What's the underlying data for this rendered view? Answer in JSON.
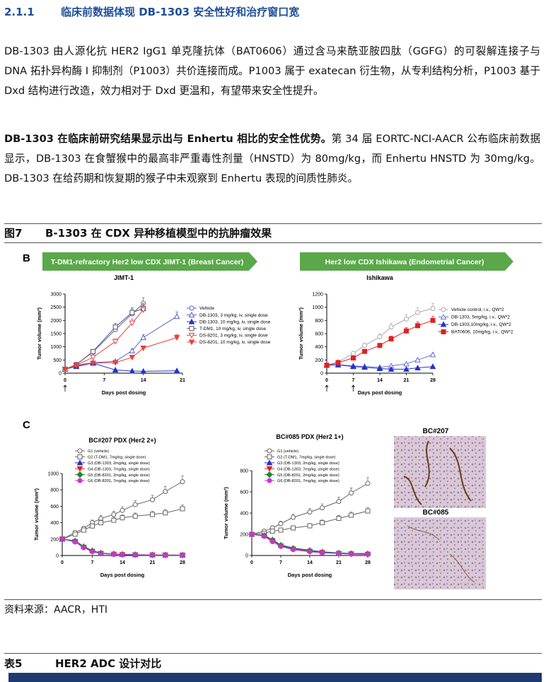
{
  "section": {
    "number": "2.1.1",
    "title": "临床前数据体现 DB-1303 安全性好和治疗窗口宽"
  },
  "para1": "DB-1303 由人源化抗 HER2 IgG1 单克隆抗体（BAT0606）通过含马来酰亚胺四肽（GGFG）的可裂解连接子与 DNA 拓扑异构酶 I 抑制剂（P1003）共价连接而成。P1003 属于 exatecan 衍生物，从专利结构分析，P1003 基于 Dxd 结构进行改造，效力相对于 Dxd 更温和，有望带来安全性提升。",
  "para2_bold": "DB-1303 在临床前研究结果显示出与 Enhertu 相比的安全性优势。",
  "para2_rest": "第 34 届 EORTC-NCI-AACR 公布临床前数据显示，DB-1303 在食蟹猴中的最高非严重毒性剂量（HNSTD）为 80mg/kg，而 Enhertu HNSTD 为 30mg/kg。DB-1303 在给药期和恢复期的猴子中未观察到 Enhertu 表现的间质性肺炎。",
  "figure": {
    "number": "图7",
    "title": "B-1303 在 CDX 异种移植模型中的抗肿瘤效果",
    "panel_b_label": "B",
    "panel_c_label": "C",
    "banner_left": "T-DM1-refractory Her2 low CDX JIMT-1 (Breast Cancer)",
    "banner_right": "Her2 low CDX Ishikawa (Endometrial Cancer)",
    "banner_color": "#5aa84a",
    "ihc1_label": "BC#207",
    "ihc2_label": "BC#085"
  },
  "source": "资料来源：AACR，HTI",
  "table": {
    "number": "表5",
    "title": "HER2 ADC 设计对比"
  },
  "chart_data": [
    {
      "type": "line",
      "title": "JIMT-1",
      "xlabel": "Days post dosing",
      "ylabel": "Tumor volume (mm³)",
      "xlim": [
        0,
        21
      ],
      "ylim": [
        0,
        3000
      ],
      "xticks": [
        0,
        7,
        14,
        21
      ],
      "yticks": [
        0,
        500,
        1000,
        1500,
        2000,
        2500,
        3000
      ],
      "dosing_days": [
        0
      ],
      "x": [
        0,
        2,
        5,
        9,
        12,
        14,
        16,
        20
      ],
      "series": [
        {
          "name": "Vehicle",
          "color": "#5560c8",
          "marker": "circle-open",
          "values": [
            150,
            330,
            800,
            1650,
            2250,
            2650,
            null,
            null
          ]
        },
        {
          "name": "DB-1303, 3  mg/kg, iv, single dose",
          "color": "#5560c8",
          "marker": "triangle-open",
          "values": [
            150,
            300,
            400,
            450,
            850,
            1350,
            null,
            2150
          ]
        },
        {
          "name": "DB-1303, 10 mg/kg, iv, single dose",
          "color": "#2233cc",
          "marker": "triangle",
          "values": [
            150,
            250,
            380,
            120,
            80,
            70,
            null,
            90
          ]
        },
        {
          "name": "T-DM1, 10 mg/kg, iv, single dose",
          "color": "#555555",
          "marker": "square-open",
          "values": [
            150,
            320,
            820,
            1750,
            2300,
            2450,
            null,
            null
          ]
        },
        {
          "name": "DS-8201, 3 mg/kg, iv, single dose",
          "color": "#e84040",
          "marker": "triangle-down-open",
          "values": [
            150,
            300,
            600,
            1200,
            1900,
            2400,
            null,
            null
          ]
        },
        {
          "name": "DS-8201, 10 mg/kg, iv, single dose",
          "color": "#e84040",
          "marker": "triangle-down",
          "values": [
            150,
            280,
            380,
            400,
            600,
            950,
            null,
            1350
          ]
        }
      ]
    },
    {
      "type": "line",
      "title": "Ishikawa",
      "xlabel": "Days post dosing",
      "ylabel": "Tumor volume (mm³)",
      "xlim": [
        0,
        28
      ],
      "ylim": [
        0,
        1200
      ],
      "xticks": [
        0,
        7,
        14,
        21,
        28
      ],
      "yticks": [
        0,
        200,
        400,
        600,
        800,
        1000,
        1200
      ],
      "dosing_days": [
        0,
        7
      ],
      "x": [
        0,
        3,
        7,
        10,
        14,
        17,
        21,
        24,
        28
      ],
      "series": [
        {
          "name": "Vehicle control, i.v., QW*2",
          "color": "#aaaaaa",
          "marker": "circle-open",
          "values": [
            120,
            170,
            300,
            420,
            550,
            700,
            820,
            920,
            980
          ]
        },
        {
          "name": "DB-1303, 5mg/kg, i.v., QW*2",
          "color": "#6a70d8",
          "marker": "triangle-open",
          "values": [
            120,
            130,
            110,
            100,
            90,
            110,
            140,
            200,
            280
          ]
        },
        {
          "name": "DB-1303,10mg/kg, i.v., QW*2",
          "color": "#2233cc",
          "marker": "triangle",
          "values": [
            120,
            125,
            100,
            90,
            70,
            60,
            60,
            80,
            100
          ]
        },
        {
          "name": "BAT0606, 10mg/kg, i.v., QW*2",
          "color": "#e02020",
          "marker": "square",
          "values": [
            120,
            160,
            230,
            330,
            420,
            520,
            640,
            720,
            800
          ]
        }
      ]
    },
    {
      "type": "line",
      "title": "BC#207 PDX (Her2 2+)",
      "xlabel": "Days post dosing",
      "ylabel": "Tumor volume (mm³)",
      "xlim": [
        0,
        28
      ],
      "ylim": [
        0,
        1000
      ],
      "xticks": [
        0,
        7,
        14,
        21,
        28
      ],
      "yticks": [
        0,
        200,
        400,
        600,
        800,
        1000
      ],
      "x": [
        0,
        3,
        5,
        7,
        9,
        12,
        14,
        17,
        21,
        24,
        28
      ],
      "series": [
        {
          "name": "G1 (vehicle)",
          "color": "#666666",
          "marker": "circle-open",
          "values": [
            200,
            280,
            330,
            400,
            450,
            500,
            550,
            620,
            680,
            780,
            900
          ]
        },
        {
          "name": "G2 (T-DM1, 7mg/kg, single dose)",
          "color": "#666666",
          "marker": "square-open",
          "values": [
            200,
            260,
            310,
            360,
            400,
            430,
            460,
            480,
            500,
            520,
            570
          ]
        },
        {
          "name": "G3 (DB-1303, 2mg/kg, single dose)",
          "color": "#2233cc",
          "marker": "triangle",
          "values": [
            200,
            180,
            110,
            60,
            30,
            20,
            15,
            10,
            8,
            6,
            5
          ]
        },
        {
          "name": "G4 (DB-1303, 7mg/kg, single dose)",
          "color": "#e02020",
          "marker": "triangle-down",
          "values": [
            200,
            170,
            100,
            50,
            25,
            15,
            10,
            8,
            6,
            5,
            4
          ]
        },
        {
          "name": "G5 (DB-8201, 2mg/kg, single dose)",
          "color": "#228833",
          "marker": "diamond",
          "values": [
            200,
            175,
            105,
            55,
            28,
            18,
            12,
            9,
            7,
            6,
            5
          ]
        },
        {
          "name": "G6 (DB-8201, 7mg/kg, single dose)",
          "color": "#cc33cc",
          "marker": "circle",
          "values": [
            200,
            165,
            95,
            45,
            22,
            14,
            10,
            7,
            5,
            4,
            3
          ]
        }
      ]
    },
    {
      "type": "line",
      "title": "BC#085 PDX (Her2 1+)",
      "xlabel": "Days post dosing",
      "ylabel": "Tumor volume (mm³)",
      "xlim": [
        0,
        28
      ],
      "ylim": [
        0,
        800
      ],
      "xticks": [
        0,
        7,
        14,
        21,
        28
      ],
      "yticks": [
        0,
        200,
        400,
        600,
        800
      ],
      "x": [
        0,
        3,
        5,
        7,
        10,
        14,
        17,
        21,
        24,
        28
      ],
      "series": [
        {
          "name": "G1 (vehicle)",
          "color": "#666666",
          "marker": "circle-open",
          "values": [
            200,
            230,
            260,
            300,
            360,
            410,
            450,
            510,
            590,
            680
          ]
        },
        {
          "name": "G2 (T-DM1, 7mg/kg, single dose)",
          "color": "#666666",
          "marker": "square-open",
          "values": [
            200,
            210,
            230,
            240,
            260,
            280,
            310,
            350,
            380,
            420
          ]
        },
        {
          "name": "G3 (DB-1303, 2mg/kg, single dose)",
          "color": "#2233cc",
          "marker": "triangle",
          "values": [
            200,
            190,
            150,
            100,
            70,
            50,
            35,
            25,
            20,
            18
          ]
        },
        {
          "name": "G4 (DB-1303, 7mg/kg, single dose)",
          "color": "#e02020",
          "marker": "triangle-down",
          "values": [
            200,
            185,
            140,
            90,
            60,
            40,
            28,
            20,
            15,
            12
          ]
        },
        {
          "name": "G5 (DB-8201, 2mg/kg, single dose)",
          "color": "#228833",
          "marker": "diamond",
          "values": [
            200,
            188,
            145,
            95,
            65,
            45,
            30,
            22,
            17,
            14
          ]
        },
        {
          "name": "G6 (DB-8201, 7mg/kg, single dose)",
          "color": "#cc33cc",
          "marker": "circle",
          "values": [
            200,
            180,
            130,
            85,
            55,
            35,
            25,
            18,
            12,
            10
          ]
        }
      ]
    }
  ]
}
